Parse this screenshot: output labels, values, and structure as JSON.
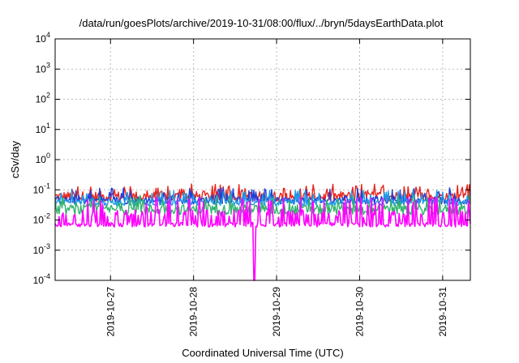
{
  "chart_data": {
    "type": "line",
    "title": "/data/run/goesPlots/archive/2019-10-31/08:00/flux/../bryn/5daysEarthData.plot",
    "xlabel": "Coordinated Universal Time (UTC)",
    "ylabel": "cSv/day",
    "yscale": "log",
    "ylim": [
      0.0001,
      10000
    ],
    "xlim": [
      "2019-10-26 08:00",
      "2019-10-31 08:00"
    ],
    "grid": true,
    "legend": "none",
    "y_ticks": [
      {
        "base": "10",
        "exp": "-4",
        "value": 0.0001
      },
      {
        "base": "10",
        "exp": "-3",
        "value": 0.001
      },
      {
        "base": "10",
        "exp": "-2",
        "value": 0.01
      },
      {
        "base": "10",
        "exp": "-1",
        "value": 0.1
      },
      {
        "base": "10",
        "exp": "0",
        "value": 1
      },
      {
        "base": "10",
        "exp": "1",
        "value": 10
      },
      {
        "base": "10",
        "exp": "2",
        "value": 100
      },
      {
        "base": "10",
        "exp": "3",
        "value": 1000
      },
      {
        "base": "10",
        "exp": "4",
        "value": 10000
      }
    ],
    "x_ticks": [
      {
        "label": "2019-10-27",
        "value": "2019-10-27 00:00"
      },
      {
        "label": "2019-10-28",
        "value": "2019-10-28 00:00"
      },
      {
        "label": "2019-10-29",
        "value": "2019-10-29 00:00"
      },
      {
        "label": "2019-10-30",
        "value": "2019-10-30 00:00"
      },
      {
        "label": "2019-10-31",
        "value": "2019-10-31 00:00"
      }
    ],
    "series": [
      {
        "color": "#e8231d",
        "base": 0.06,
        "spread": 0.35,
        "spike": 0.12
      },
      {
        "color": "#1f3fd8",
        "base": 0.045,
        "spread": 0.25,
        "spike": 0.09
      },
      {
        "color": "#1e9be6",
        "base": 0.038,
        "spread": 0.22,
        "spike": 0.075
      },
      {
        "color": "#2fb36a",
        "base": 0.022,
        "spread": 0.35,
        "spike": 0.05
      },
      {
        "color": "#ff00ff",
        "base": 0.007,
        "spread": 0.15,
        "spike": 0.045,
        "dropout": [
          "2019-10-28 17:30",
          0.0001
        ]
      }
    ]
  }
}
